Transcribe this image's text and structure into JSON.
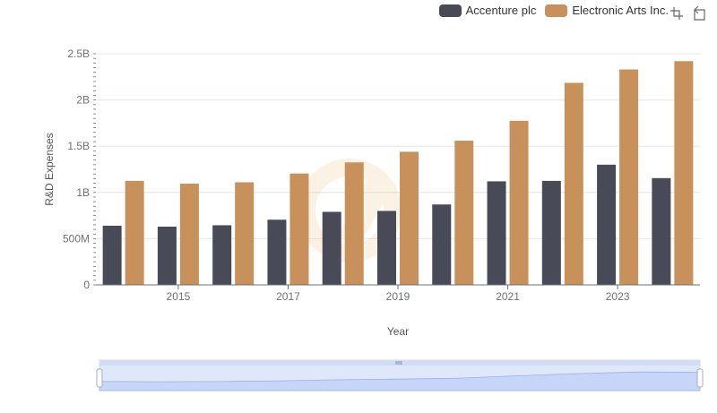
{
  "legend": {
    "items": [
      {
        "label": "Accenture plc",
        "color": "#494a57"
      },
      {
        "label": "Electronic Arts Inc.",
        "color": "#c8915b"
      }
    ]
  },
  "toolbar": {
    "icons": [
      "zoom-select-icon",
      "zoom-reset-icon"
    ]
  },
  "chart_data": {
    "type": "bar",
    "xlabel": "Year",
    "ylabel": "R&D Expenses",
    "categories": [
      "2014",
      "2015",
      "2016",
      "2017",
      "2018",
      "2019",
      "2020",
      "2021",
      "2022",
      "2023",
      "2024"
    ],
    "x_tick_labels": [
      "2015",
      "2017",
      "2019",
      "2021",
      "2023"
    ],
    "y_tick_labels": [
      "0",
      "500M",
      "1B",
      "1.5B",
      "2B",
      "2.5B"
    ],
    "ylim": [
      0,
      2500000000
    ],
    "grid": true,
    "legend_position": "top-right",
    "series": [
      {
        "name": "Accenture plc",
        "color": "#494a57",
        "values": [
          640000000,
          630000000,
          645000000,
          705000000,
          790000000,
          800000000,
          870000000,
          1120000000,
          1125000000,
          1300000000,
          1155000000
        ]
      },
      {
        "name": "Electronic Arts Inc.",
        "color": "#c8915b",
        "values": [
          1125000000,
          1095000000,
          1110000000,
          1205000000,
          1325000000,
          1440000000,
          1560000000,
          1775000000,
          2185000000,
          2330000000,
          2420000000
        ]
      }
    ]
  }
}
